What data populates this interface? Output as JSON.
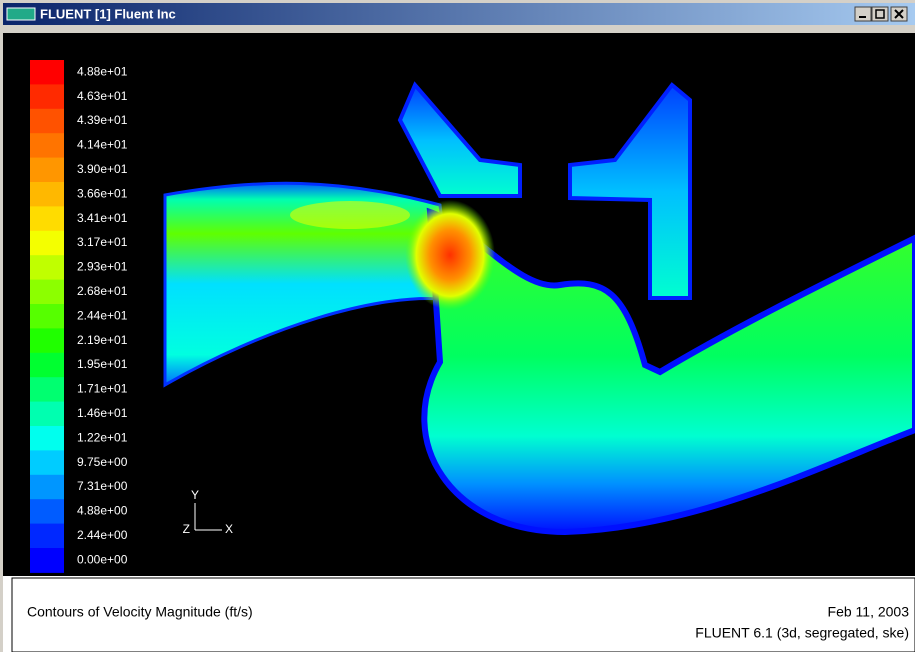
{
  "window": {
    "title": "FLUENT [1] Fluent Inc"
  },
  "colorbar": {
    "labels": [
      "4.88e+01",
      "4.63e+01",
      "4.39e+01",
      "4.14e+01",
      "3.90e+01",
      "3.66e+01",
      "3.41e+01",
      "3.17e+01",
      "2.93e+01",
      "2.68e+01",
      "2.44e+01",
      "2.19e+01",
      "1.95e+01",
      "1.71e+01",
      "1.46e+01",
      "1.22e+01",
      "9.75e+00",
      "7.31e+00",
      "4.88e+00",
      "2.44e+00",
      "0.00e+00"
    ],
    "colors": [
      "#ff0000",
      "#ff2a00",
      "#ff5200",
      "#ff7400",
      "#ff9600",
      "#ffb800",
      "#ffdc00",
      "#f4ff00",
      "#c0ff00",
      "#8cff00",
      "#56ff00",
      "#20ff00",
      "#00ff30",
      "#00ff70",
      "#00ffb0",
      "#00ffee",
      "#00ccff",
      "#0096ff",
      "#005cff",
      "#0028ff",
      "#0000ff"
    ]
  },
  "axes": {
    "y": "Y",
    "z": "Z",
    "x": "X"
  },
  "caption": {
    "description": "Contours of Velocity Magnitude (ft/s)",
    "date": "Feb 11, 2003",
    "version": "FLUENT 6.1 (3d, segregated, ske)"
  }
}
